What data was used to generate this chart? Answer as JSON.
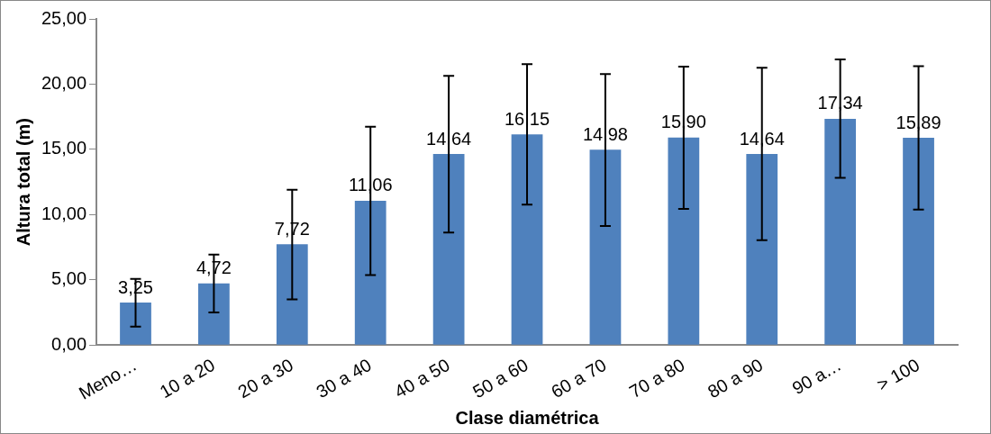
{
  "chart_data": {
    "type": "bar",
    "xlabel": "Clase diamétrica",
    "ylabel": "Altura total (m)",
    "categories": [
      "Meno…",
      "10 a 20",
      "20 a 30",
      "30 a 40",
      "40 a 50",
      "50 a 60",
      "60 a 70",
      "70 a 80",
      "80 a 90",
      "90 a…",
      "> 100"
    ],
    "values": [
      3.25,
      4.72,
      7.72,
      11.06,
      14.64,
      16.15,
      14.98,
      15.9,
      14.64,
      17.34,
      15.89
    ],
    "value_labels": [
      "3,25",
      "4,72",
      "7,72",
      "11,06",
      "14,64",
      "16,15",
      "14,98",
      "15,90",
      "14,64",
      "17,34",
      "15,89"
    ],
    "errors": [
      [
        1.42,
        5.07
      ],
      [
        2.5,
        6.94
      ],
      [
        3.5,
        11.91
      ],
      [
        5.37,
        16.74
      ],
      [
        8.63,
        20.64
      ],
      [
        10.76,
        21.54
      ],
      [
        9.12,
        20.78
      ],
      [
        10.44,
        21.35
      ],
      [
        8.04,
        21.25
      ],
      [
        12.82,
        21.89
      ],
      [
        10.39,
        21.37
      ]
    ],
    "color": "#4f81bd",
    "ylim": [
      0,
      25
    ],
    "yticks": [
      {
        "value": 0,
        "label": "0,00"
      },
      {
        "value": 5,
        "label": "5,00"
      },
      {
        "value": 10,
        "label": "10,00"
      },
      {
        "value": 15,
        "label": "15,00"
      },
      {
        "value": 20,
        "label": "20,00"
      },
      {
        "value": 25,
        "label": "25,00"
      }
    ],
    "grid": false,
    "legend": false
  }
}
